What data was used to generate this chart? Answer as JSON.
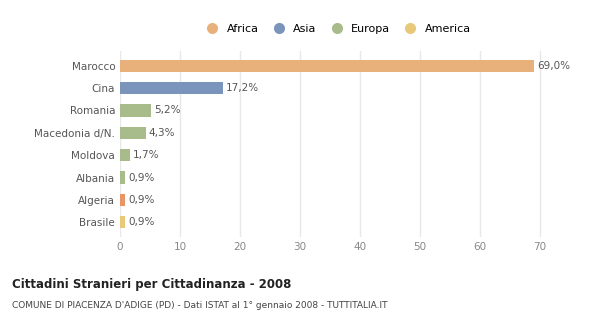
{
  "categories": [
    "Brasile",
    "Algeria",
    "Albania",
    "Moldova",
    "Macedonia d/N.",
    "Romania",
    "Cina",
    "Marocco"
  ],
  "values": [
    0.9,
    0.9,
    0.9,
    1.7,
    4.3,
    5.2,
    17.2,
    69.0
  ],
  "labels": [
    "0,9%",
    "0,9%",
    "0,9%",
    "1,7%",
    "4,3%",
    "5,2%",
    "17,2%",
    "69,0%"
  ],
  "colors": [
    "#E8C97A",
    "#E8956A",
    "#A8BB8A",
    "#A8BB8A",
    "#A8BB8A",
    "#A8BB8A",
    "#7A94BB",
    "#E8B07A"
  ],
  "legend": [
    {
      "label": "Africa",
      "color": "#E8B07A"
    },
    {
      "label": "Asia",
      "color": "#7A94BB"
    },
    {
      "label": "Europa",
      "color": "#A8BB8A"
    },
    {
      "label": "America",
      "color": "#E8C97A"
    }
  ],
  "xlim": [
    0,
    72
  ],
  "xticks": [
    0,
    10,
    20,
    30,
    40,
    50,
    60,
    70
  ],
  "title": "Cittadini Stranieri per Cittadinanza - 2008",
  "subtitle": "COMUNE DI PIACENZA D'ADIGE (PD) - Dati ISTAT al 1° gennaio 2008 - TUTTITALIA.IT",
  "background_color": "#ffffff",
  "bar_height": 0.55,
  "grid_color": "#e8e8e8"
}
